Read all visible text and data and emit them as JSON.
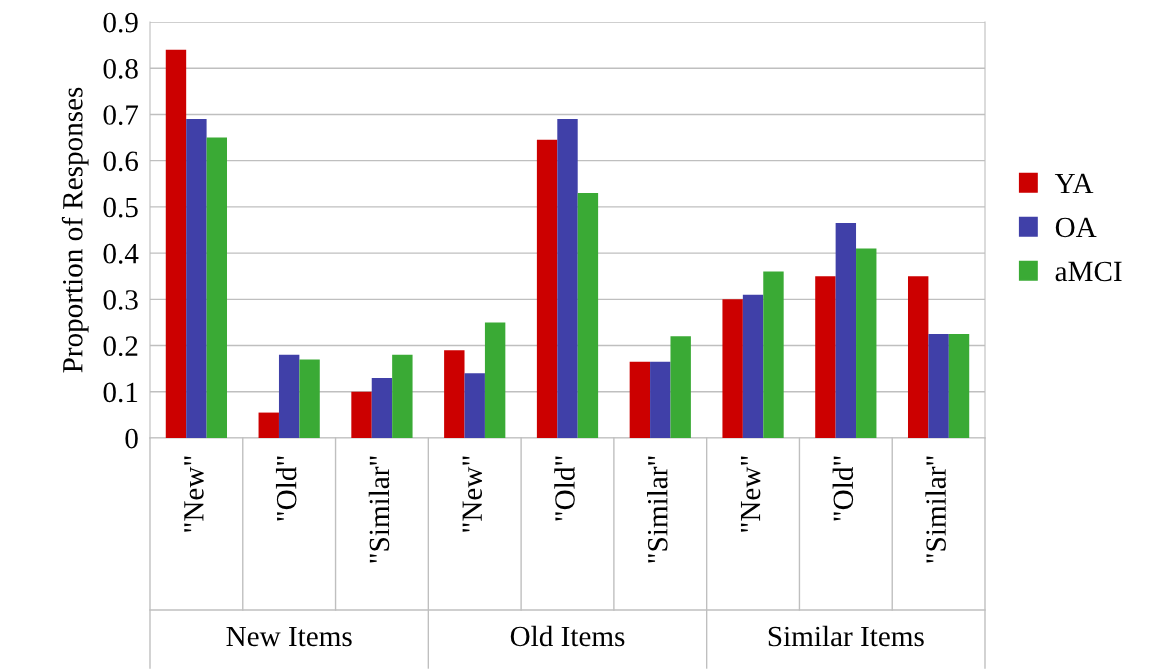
{
  "chart_data": {
    "type": "bar",
    "ylabel": "Proportion of Responses",
    "categories": [
      "\"New\"",
      "\"Old\"",
      "\"Similar\"",
      "\"New\"",
      "\"Old\"",
      "\"Similar\"",
      "\"New\"",
      "\"Old\"",
      "\"Similar\""
    ],
    "series": [
      {
        "name": "YA",
        "color": "#cc0000",
        "values": [
          0.84,
          0.055,
          0.1,
          0.19,
          0.645,
          0.165,
          0.3,
          0.35,
          0.35
        ]
      },
      {
        "name": "OA",
        "color": "#4040a8",
        "values": [
          0.69,
          0.18,
          0.13,
          0.14,
          0.69,
          0.165,
          0.31,
          0.465,
          0.225
        ]
      },
      {
        "name": "aMCI",
        "color": "#3aaa35",
        "values": [
          0.65,
          0.17,
          0.18,
          0.25,
          0.53,
          0.22,
          0.36,
          0.41,
          0.225
        ]
      }
    ],
    "annotations": [
      "New Items",
      "Old Items",
      "Similar Items"
    ],
    "ylim": [
      0,
      0.9
    ],
    "yticks": [
      0,
      0.1,
      0.2,
      0.3,
      0.4,
      0.5,
      0.6,
      0.7,
      0.8,
      0.9
    ],
    "grid": "y",
    "legend": "right"
  }
}
